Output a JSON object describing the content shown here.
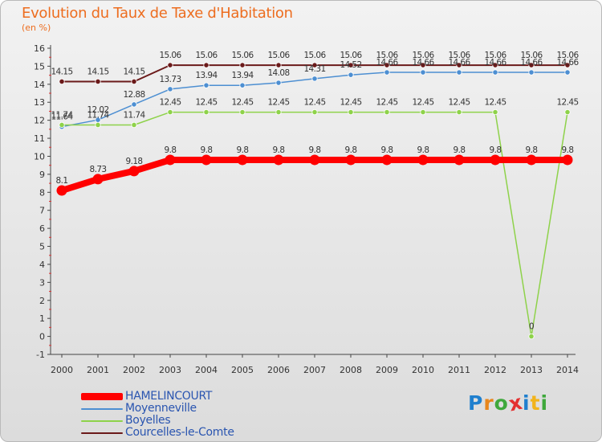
{
  "title": "Evolution du Taux de Taxe d'Habitation",
  "subtitle": "(en %)",
  "chart_data": {
    "type": "line",
    "title": "Evolution du Taux de Taxe d'Habitation",
    "ylabel": "(en %)",
    "xlabel": "",
    "ylim": [
      -1,
      16
    ],
    "yticks": [
      -1,
      0,
      1,
      2,
      3,
      4,
      5,
      6,
      7,
      8,
      9,
      10,
      11,
      12,
      13,
      14,
      15,
      16
    ],
    "grid": false,
    "legend_position": "bottom-left",
    "x": [
      "2000",
      "2001",
      "2002",
      "2003",
      "2004",
      "2005",
      "2006",
      "2007",
      "2008",
      "2009",
      "2010",
      "2011",
      "2012",
      "2013",
      "2014"
    ],
    "series": [
      {
        "name": "HAMELINCOURT",
        "color": "#ff0000",
        "values": [
          8.1,
          8.73,
          9.18,
          9.8,
          9.8,
          9.8,
          9.8,
          9.8,
          9.8,
          9.8,
          9.8,
          9.8,
          9.8,
          9.8,
          9.8
        ],
        "labels": [
          "8.1",
          "8.73",
          "9.18",
          "9.8",
          "9.8",
          "9.8",
          "9.8",
          "9.8",
          "9.8",
          "9.8",
          "9.8",
          "9.8",
          "9.8",
          "9.8",
          "9.8"
        ]
      },
      {
        "name": "Moyenneville",
        "color": "#4d8fd2",
        "values": [
          11.64,
          12.02,
          12.88,
          13.73,
          13.94,
          13.94,
          14.08,
          14.31,
          14.52,
          14.66,
          14.66,
          14.66,
          14.66,
          14.66,
          14.66
        ],
        "labels": [
          "11.64",
          "12.02",
          "12.88",
          "13.73",
          "13.94",
          "13.94",
          "14.08",
          "14.31",
          "14.52",
          "14.66",
          "14.66",
          "14.66",
          "14.66",
          "14.66",
          "14.66"
        ]
      },
      {
        "name": "Boyelles",
        "color": "#8ed24a",
        "values": [
          11.74,
          11.74,
          11.74,
          12.45,
          12.45,
          12.45,
          12.45,
          12.45,
          12.45,
          12.45,
          12.45,
          12.45,
          12.45,
          0,
          12.45
        ],
        "labels": [
          "11.74",
          "11.74",
          "11.74",
          "12.45",
          "12.45",
          "12.45",
          "12.45",
          "12.45",
          "12.45",
          "12.45",
          "12.45",
          "12.45",
          "12.45",
          "0",
          "12.45"
        ]
      },
      {
        "name": "Courcelles-le-Comte",
        "color": "#6b1a1a",
        "values": [
          14.15,
          14.15,
          14.15,
          15.06,
          15.06,
          15.06,
          15.06,
          15.06,
          15.06,
          15.06,
          15.06,
          15.06,
          15.06,
          15.06,
          15.06
        ],
        "labels": [
          "14.15",
          "14.15",
          "14.15",
          "15.06",
          "15.06",
          "15.06",
          "15.06",
          "15.06",
          "15.06",
          "15.06",
          "15.06",
          "15.06",
          "15.06",
          "15.06",
          "15.06"
        ]
      }
    ]
  },
  "legend": [
    {
      "label": "HAMELINCOURT",
      "color": "#ff0000"
    },
    {
      "label": "Moyenneville",
      "color": "#4d8fd2"
    },
    {
      "label": "Boyelles",
      "color": "#8ed24a"
    },
    {
      "label": "Courcelles-le-Comte",
      "color": "#6b1a1a"
    }
  ],
  "logo": {
    "letters": [
      "P",
      "r",
      "o",
      "x",
      "i",
      "t",
      "i"
    ],
    "colors": [
      "#1f7fce",
      "#e8861c",
      "#3fa83c",
      "#e42f2f",
      "#1f7fce",
      "#f2b41c",
      "#3fa83c"
    ]
  }
}
